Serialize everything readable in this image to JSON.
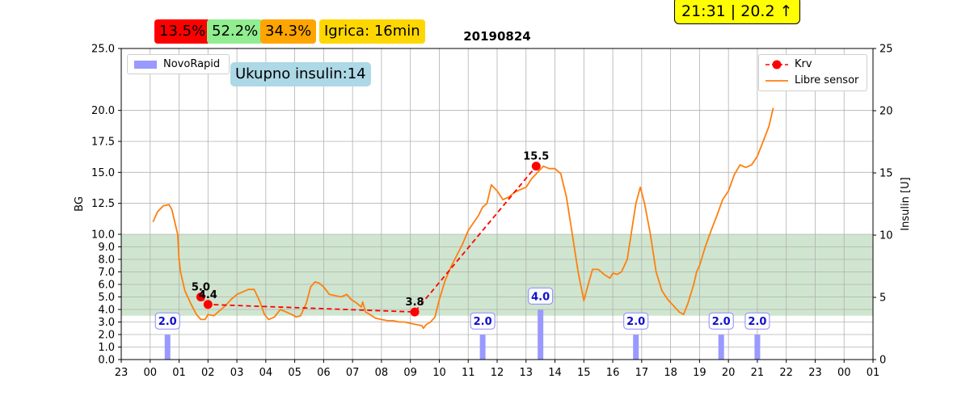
{
  "header": {
    "badges": [
      {
        "text": "13.5%",
        "color": "#ff0000"
      },
      {
        "text": "52.2%",
        "color": "#90ee90"
      },
      {
        "text": "34.3%",
        "color": "#ffa500"
      },
      {
        "text": "Igrica: 16min",
        "color": "#ffd700"
      }
    ],
    "clock": "21:31 | 20.2 ↑",
    "clock_color": "#ffff00",
    "title": "20190824",
    "total_insulin": "Ukupno insulin:14",
    "total_insulin_color": "#add8e6"
  },
  "chart_data": {
    "type": "line",
    "title": "20190824",
    "ylabel": "BG",
    "y2label": "Insulin [U]",
    "ylim": [
      0,
      25
    ],
    "y2lim": [
      0,
      25
    ],
    "target_range": [
      3.5,
      10.0
    ],
    "target_color": "#cfe5cf",
    "yticks": [
      "0.0",
      "1.0",
      "2.0",
      "3.0",
      "4.0",
      "5.0",
      "6.0",
      "7.0",
      "8.0",
      "9.0",
      "10.0",
      "12.5",
      "15.0",
      "17.5",
      "20.0",
      "25.0"
    ],
    "ytick_values": [
      0,
      1,
      2,
      3,
      4,
      5,
      6,
      7,
      8,
      9,
      10,
      12.5,
      15,
      17.5,
      20,
      25
    ],
    "y2ticks": [
      "0",
      "5",
      "10",
      "15",
      "20",
      "25"
    ],
    "y2tick_values": [
      0,
      5,
      10,
      15,
      20,
      25
    ],
    "xlim": [
      -1,
      25
    ],
    "xticks": [
      "23",
      "00",
      "01",
      "02",
      "03",
      "04",
      "05",
      "06",
      "07",
      "08",
      "09",
      "10",
      "11",
      "12",
      "13",
      "14",
      "15",
      "16",
      "17",
      "18",
      "19",
      "20",
      "21",
      "22",
      "23",
      "00",
      "01"
    ],
    "xtick_values": [
      -1,
      0,
      1,
      2,
      3,
      4,
      5,
      6,
      7,
      8,
      9,
      10,
      11,
      12,
      13,
      14,
      15,
      16,
      17,
      18,
      19,
      20,
      21,
      22,
      23,
      24,
      25
    ],
    "grid": true,
    "legend_left": {
      "placement": "top-left",
      "entries": [
        {
          "name": "NovoRapid",
          "color": "#9999ff"
        }
      ]
    },
    "legend_right": {
      "placement": "top-right",
      "entries": [
        {
          "name": "Krv",
          "color": "#ff0000"
        },
        {
          "name": "Libre sensor",
          "color": "#ff7f0e"
        }
      ]
    },
    "series": [
      {
        "name": "Libre sensor",
        "color": "#ff7f0e",
        "x": [
          0.1,
          0.25,
          0.45,
          0.65,
          0.75,
          0.95,
          1.0,
          1.05,
          1.2,
          1.4,
          1.6,
          1.75,
          1.9,
          2.0,
          2.2,
          2.4,
          2.6,
          2.8,
          3.0,
          3.2,
          3.4,
          3.6,
          3.8,
          3.95,
          4.1,
          4.3,
          4.5,
          4.7,
          4.9,
          5.05,
          5.2,
          5.4,
          5.55,
          5.7,
          5.85,
          6.0,
          6.2,
          6.4,
          6.6,
          6.8,
          6.95,
          7.15,
          7.3,
          7.35,
          7.45,
          7.6,
          7.8,
          8.0,
          8.2,
          8.4,
          8.6,
          8.8,
          9.0,
          9.2,
          9.4,
          9.45,
          9.55,
          9.7,
          9.85,
          10.0,
          10.2,
          10.4,
          10.6,
          10.8,
          11.0,
          11.2,
          11.35,
          11.5,
          11.65,
          11.8,
          12.0,
          12.2,
          12.4,
          12.6,
          12.8,
          13.0,
          13.2,
          13.4,
          13.6,
          13.8,
          14.0,
          14.2,
          14.4,
          14.6,
          14.8,
          15.0,
          15.15,
          15.3,
          15.5,
          15.7,
          15.9,
          16.0,
          16.15,
          16.3,
          16.5,
          16.7,
          16.8,
          16.95,
          17.1,
          17.3,
          17.5,
          17.7,
          17.9,
          18.1,
          18.3,
          18.45,
          18.6,
          18.8,
          18.9,
          19.0,
          19.2,
          19.4,
          19.6,
          19.8,
          20.0,
          20.2,
          20.4,
          20.6,
          20.8,
          21.0,
          21.2,
          21.4,
          21.55
        ],
        "y": [
          11.0,
          11.8,
          12.3,
          12.4,
          12.0,
          10.0,
          8.0,
          7.0,
          5.5,
          4.5,
          3.6,
          3.2,
          3.2,
          3.6,
          3.5,
          3.9,
          4.3,
          4.8,
          5.2,
          5.4,
          5.6,
          5.6,
          4.6,
          3.6,
          3.2,
          3.4,
          4.0,
          3.8,
          3.6,
          3.4,
          3.5,
          4.5,
          5.8,
          6.2,
          6.1,
          5.8,
          5.2,
          5.1,
          5.0,
          5.2,
          4.8,
          4.5,
          4.2,
          4.6,
          3.8,
          3.6,
          3.3,
          3.2,
          3.1,
          3.1,
          3.0,
          3.0,
          2.9,
          2.8,
          2.7,
          2.5,
          2.8,
          3.0,
          3.4,
          4.8,
          6.3,
          7.4,
          8.3,
          9.2,
          10.3,
          11.0,
          11.5,
          12.2,
          12.5,
          14.0,
          13.5,
          12.8,
          13.0,
          13.4,
          13.6,
          13.8,
          14.5,
          15.0,
          15.5,
          15.3,
          15.3,
          14.9,
          13.0,
          10.0,
          7.0,
          4.7,
          6.0,
          7.2,
          7.2,
          6.8,
          6.5,
          6.9,
          6.8,
          7.0,
          8.0,
          11.0,
          12.5,
          13.8,
          12.5,
          10.0,
          7.0,
          5.5,
          4.8,
          4.3,
          3.8,
          3.6,
          4.5,
          6.0,
          7.0,
          7.5,
          9.0,
          10.3,
          11.5,
          12.8,
          13.5,
          14.8,
          15.6,
          15.4,
          15.6,
          16.3,
          17.5,
          18.7,
          20.2
        ]
      },
      {
        "name": "Krv",
        "color": "#ff0000",
        "x": [
          1.75,
          2.0,
          9.15,
          13.35
        ],
        "y": [
          5.0,
          4.4,
          3.8,
          15.5
        ],
        "labels": [
          "5.0",
          "4.4",
          "3.8",
          "15.5"
        ]
      },
      {
        "name": "NovoRapid",
        "color": "#9999ff",
        "axis": "right",
        "x": [
          0.6,
          11.5,
          13.5,
          16.8,
          19.75,
          21.0
        ],
        "values": [
          2.0,
          2.0,
          4.0,
          2.0,
          2.0,
          2.0
        ],
        "labels": [
          "2.0",
          "2.0",
          "4.0",
          "2.0",
          "2.0",
          "2.0"
        ]
      }
    ]
  }
}
